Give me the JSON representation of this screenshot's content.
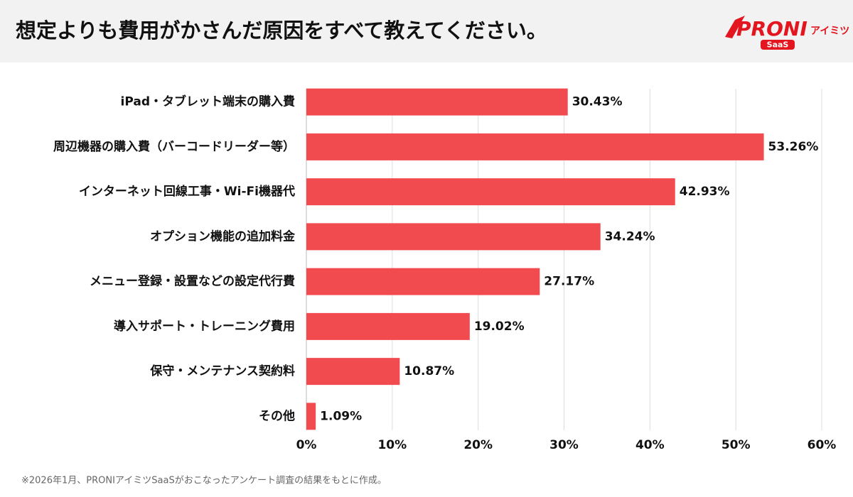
{
  "chart_data": {
    "type": "hbar",
    "title": "想定よりも費用がかさんだ原因をすべて教えてください。",
    "logo": {
      "brand": "PRONI",
      "sub": "アイミツ",
      "tag": "SaaS"
    },
    "note": "※2026年1月、PRONIアイミツSaaSがおこなったアンケート調査の結果をもとに作成。",
    "categories": [
      "iPad・タブレット端末の購入費",
      "周辺機器の購入費（バーコードリーダー等）",
      "インターネット回線工事・Wi-Fi機器代",
      "オプション機能の追加料金",
      "メニュー登録・設置などの設定代行費",
      "導入サポート・トレーニング費用",
      "保守・メンテナンス契約料",
      "その他"
    ],
    "values": [
      30.43,
      53.26,
      42.93,
      34.24,
      27.17,
      19.02,
      10.87,
      1.09
    ],
    "value_labels": [
      "30.43%",
      "53.26%",
      "42.93%",
      "34.24%",
      "27.17%",
      "19.02%",
      "10.87%",
      "1.09%"
    ],
    "color": "#f24b4f",
    "xlim": [
      0,
      60
    ],
    "xticks": [
      {
        "value": 0,
        "label": "0%"
      },
      {
        "value": 10,
        "label": "10%"
      },
      {
        "value": 20,
        "label": "20%"
      },
      {
        "value": 30,
        "label": "30%"
      },
      {
        "value": 40,
        "label": "40%"
      },
      {
        "value": 50,
        "label": "50%"
      },
      {
        "value": 60,
        "label": "60%"
      }
    ],
    "grid": true
  }
}
